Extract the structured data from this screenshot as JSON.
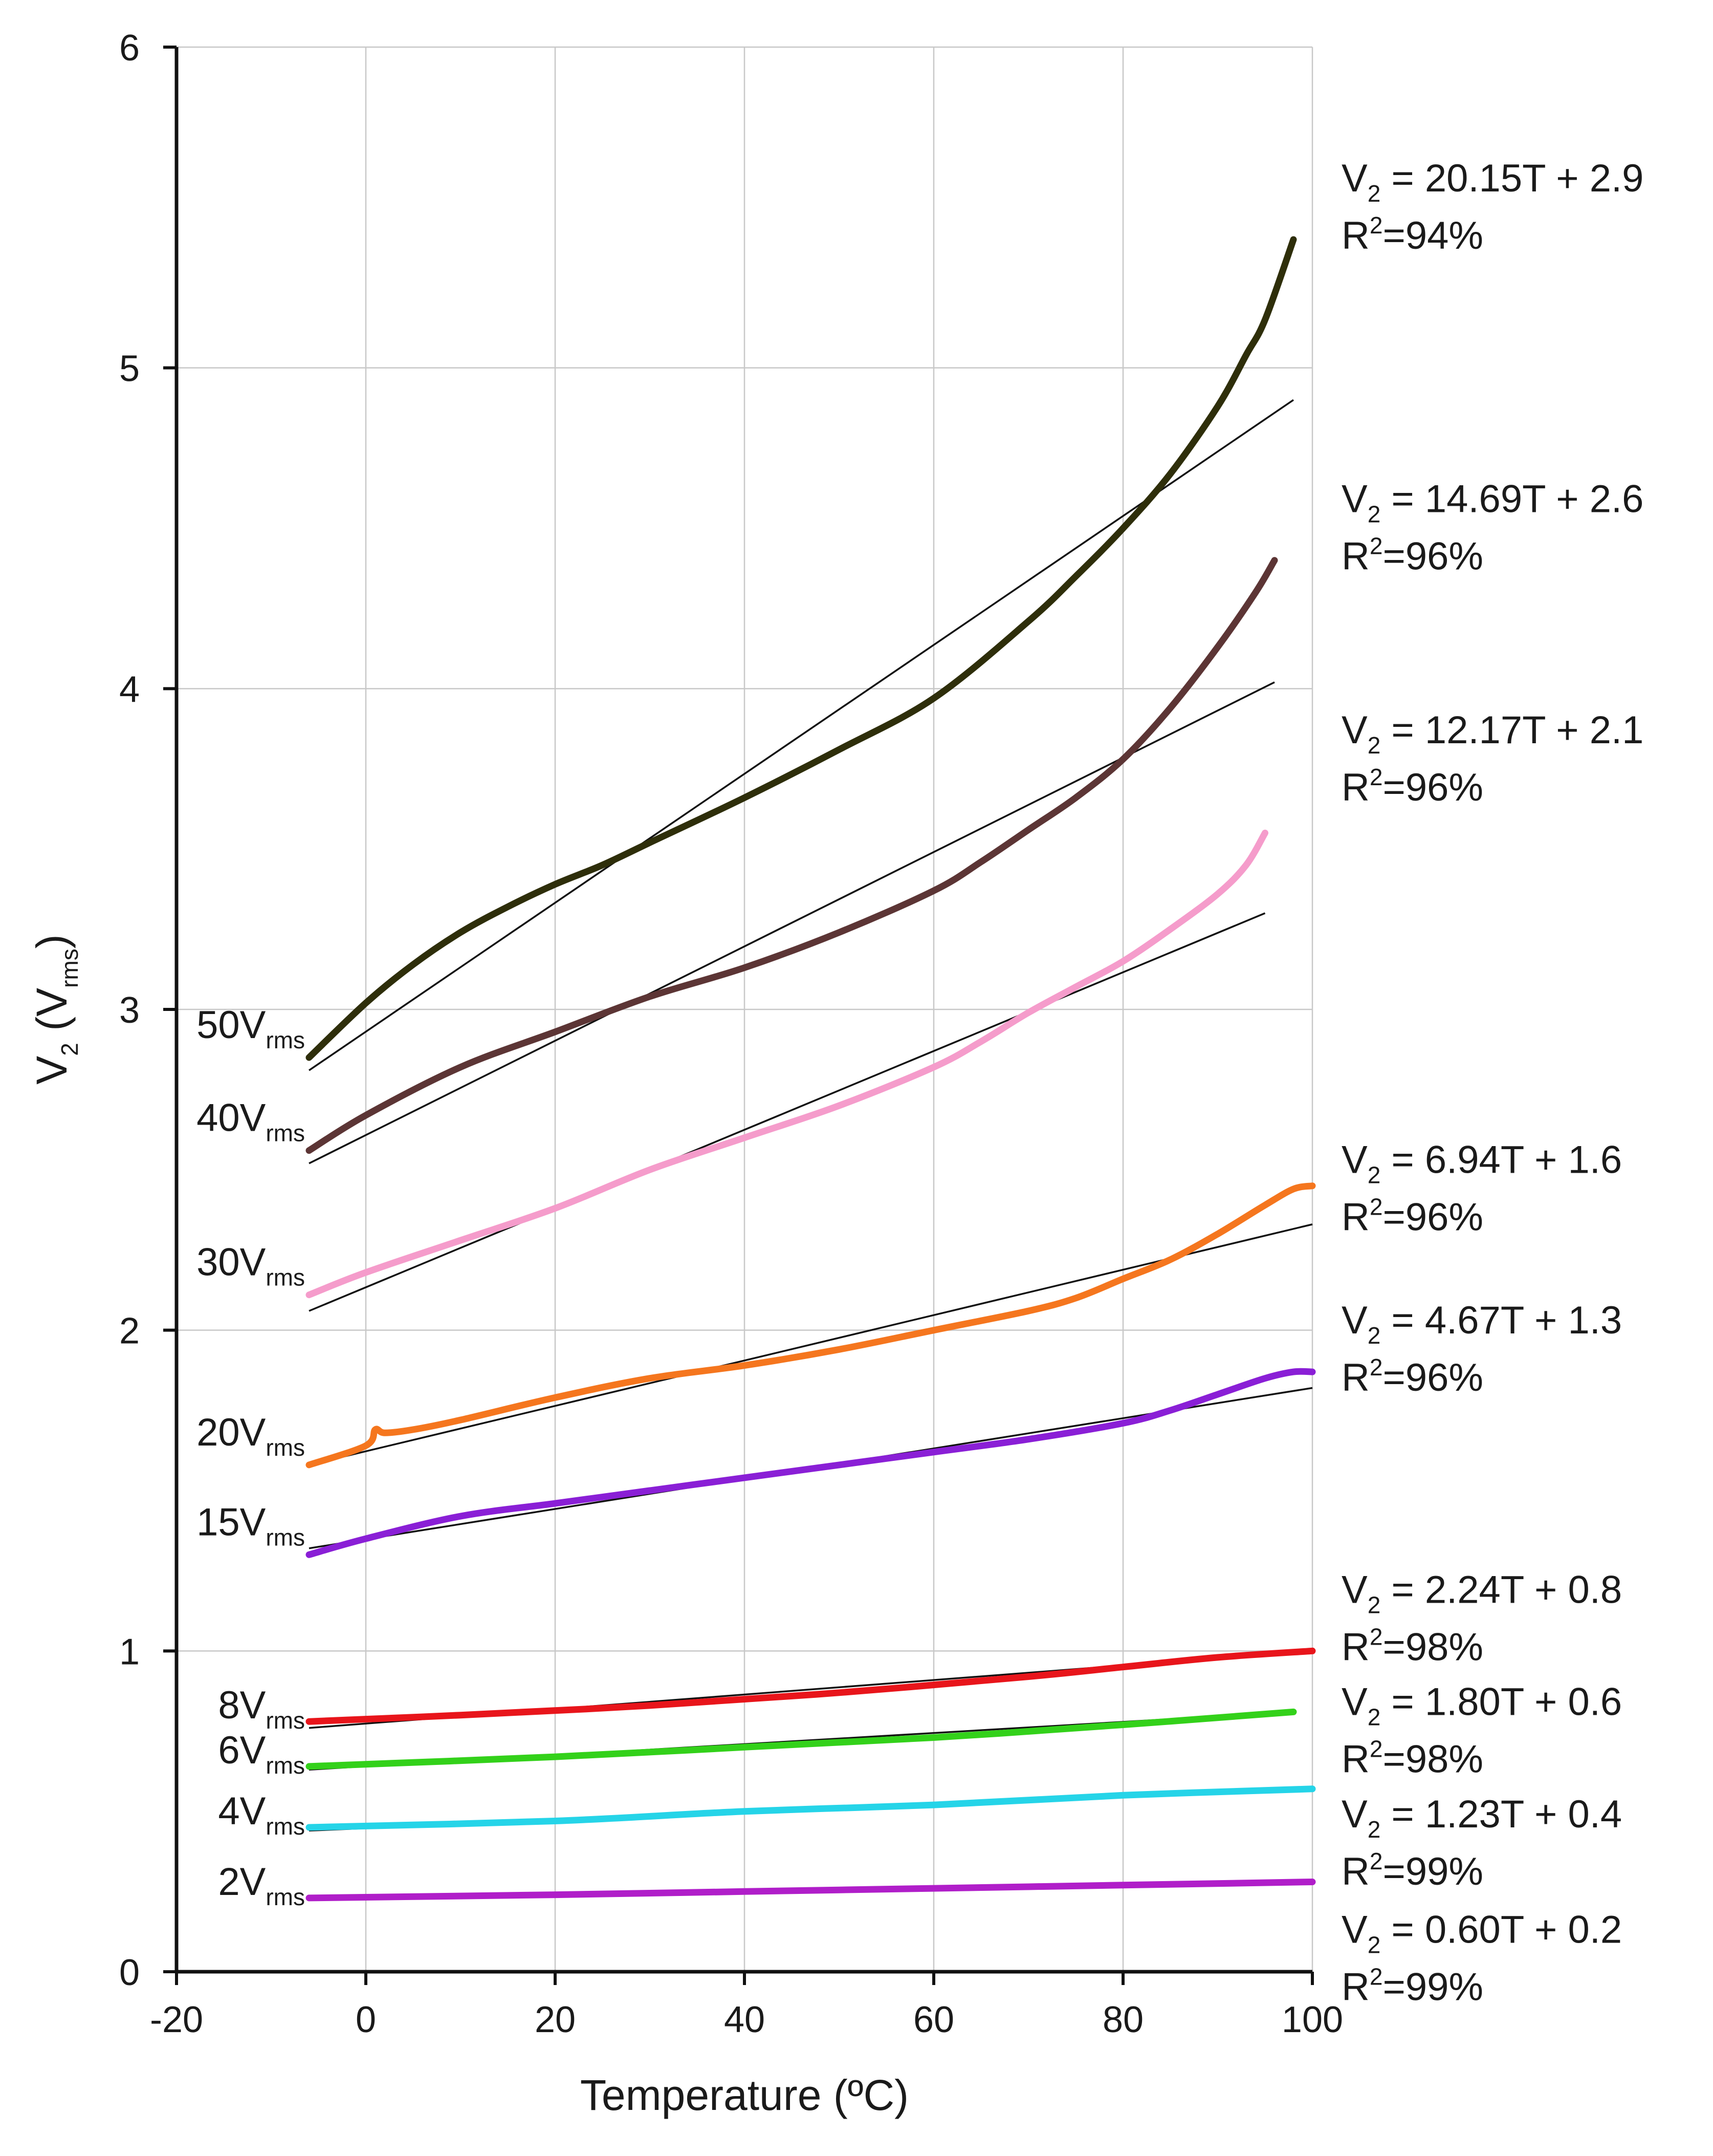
{
  "chart_data": {
    "type": "line",
    "title": "",
    "xlabel": "Temperature (ºC)",
    "ylabel": {
      "main": "V",
      "sub": "2",
      "paren_main": "V",
      "paren_sub": "rms"
    },
    "xlim": [
      -20,
      100
    ],
    "ylim": [
      0,
      6
    ],
    "xticks": [
      -20,
      0,
      20,
      40,
      60,
      80,
      100
    ],
    "yticks": [
      0,
      1,
      2,
      3,
      4,
      5,
      6
    ],
    "grid": true,
    "series": [
      {
        "name": "50Vrms",
        "label": {
          "main": "50V",
          "sub": "rms"
        },
        "color": "#2e2e0a",
        "x": [
          -6,
          0,
          5,
          10,
          15,
          20,
          25,
          30,
          40,
          50,
          60,
          70,
          75,
          80,
          85,
          90,
          93,
          95,
          98
        ],
        "y": [
          2.85,
          3.02,
          3.14,
          3.24,
          3.32,
          3.39,
          3.45,
          3.52,
          3.66,
          3.81,
          3.97,
          4.21,
          4.35,
          4.5,
          4.67,
          4.88,
          5.04,
          5.15,
          5.4
        ],
        "fit": {
          "x": [
            -6,
            98
          ],
          "y": [
            2.81,
            4.9
          ]
        },
        "equation": {
          "v": "V",
          "v_sub": "2",
          "rest": " = 20.15T + 2.9",
          "r_pre": "R",
          "r_sup": "2",
          "r_rest": "=94%"
        }
      },
      {
        "name": "40Vrms",
        "label": {
          "main": "40V",
          "sub": "rms"
        },
        "color": "#5c3535",
        "x": [
          -6,
          0,
          10,
          20,
          30,
          40,
          50,
          60,
          65,
          70,
          75,
          80,
          85,
          90,
          94,
          96
        ],
        "y": [
          2.56,
          2.67,
          2.82,
          2.93,
          3.04,
          3.13,
          3.24,
          3.37,
          3.46,
          3.56,
          3.66,
          3.78,
          3.94,
          4.13,
          4.3,
          4.4
        ],
        "fit": {
          "x": [
            -6,
            96
          ],
          "y": [
            2.52,
            4.02
          ]
        },
        "equation": {
          "v": "V",
          "v_sub": "2",
          "rest": " = 14.69T + 2.6",
          "r_pre": "R",
          "r_sup": "2",
          "r_rest": "=96%"
        }
      },
      {
        "name": "30Vrms",
        "label": {
          "main": "30V",
          "sub": "rms"
        },
        "color": "#f59ccb",
        "x": [
          -6,
          0,
          10,
          20,
          30,
          40,
          50,
          60,
          65,
          70,
          75,
          80,
          85,
          90,
          93,
          95
        ],
        "y": [
          2.11,
          2.18,
          2.28,
          2.38,
          2.5,
          2.6,
          2.7,
          2.82,
          2.9,
          2.99,
          3.07,
          3.15,
          3.25,
          3.36,
          3.45,
          3.55
        ],
        "fit": {
          "x": [
            -6,
            95
          ],
          "y": [
            2.06,
            3.3
          ]
        },
        "equation": {
          "v": "V",
          "v_sub": "2",
          "rest": " = 12.17T + 2.1",
          "r_pre": "R",
          "r_sup": "2",
          "r_rest": "=96%"
        }
      },
      {
        "name": "20Vrms",
        "label": {
          "main": "20V",
          "sub": "rms"
        },
        "color": "#f5761e",
        "x": [
          -6,
          0,
          1,
          2,
          5,
          10,
          20,
          30,
          40,
          50,
          60,
          70,
          75,
          80,
          85,
          90,
          95,
          98,
          100
        ],
        "y": [
          1.58,
          1.64,
          1.69,
          1.68,
          1.69,
          1.72,
          1.79,
          1.85,
          1.89,
          1.94,
          2.0,
          2.06,
          2.1,
          2.16,
          2.22,
          2.3,
          2.39,
          2.44,
          2.45
        ],
        "fit": {
          "x": [
            -6,
            100
          ],
          "y": [
            1.58,
            2.33
          ]
        },
        "equation": {
          "v": "V",
          "v_sub": "2",
          "rest": " = 6.94T + 1.6",
          "r_pre": "R",
          "r_sup": "2",
          "r_rest": "=96%"
        }
      },
      {
        "name": "15Vrms",
        "label": {
          "main": "15V",
          "sub": "rms"
        },
        "color": "#8a1fd6",
        "x": [
          -6,
          0,
          10,
          20,
          30,
          40,
          50,
          60,
          70,
          80,
          85,
          90,
          95,
          98,
          100
        ],
        "y": [
          1.3,
          1.35,
          1.42,
          1.46,
          1.5,
          1.54,
          1.58,
          1.62,
          1.66,
          1.71,
          1.75,
          1.8,
          1.85,
          1.87,
          1.87
        ],
        "fit": {
          "x": [
            -6,
            100
          ],
          "y": [
            1.32,
            1.82
          ]
        },
        "equation": {
          "v": "V",
          "v_sub": "2",
          "rest": " = 4.67T + 1.3",
          "r_pre": "R",
          "r_sup": "2",
          "r_rest": "=96%"
        }
      },
      {
        "name": "8Vrms",
        "label": {
          "main": "8V",
          "sub": "rms"
        },
        "color": "#e8151b",
        "x": [
          -6,
          10,
          30,
          50,
          70,
          80,
          90,
          100
        ],
        "y": [
          0.78,
          0.8,
          0.83,
          0.87,
          0.92,
          0.95,
          0.98,
          1.0
        ],
        "fit": {
          "x": [
            -6,
            100
          ],
          "y": [
            0.76,
            1.0
          ]
        },
        "equation": {
          "v": "V",
          "v_sub": "2",
          "rest": " = 2.24T + 0.8",
          "r_pre": "R",
          "r_sup": "2",
          "r_rest": "=98%"
        }
      },
      {
        "name": "6Vrms",
        "label": {
          "main": "6V",
          "sub": "rms"
        },
        "color": "#33d11a",
        "x": [
          -6,
          20,
          40,
          60,
          80,
          98
        ],
        "y": [
          0.64,
          0.67,
          0.7,
          0.73,
          0.77,
          0.81
        ],
        "fit": {
          "x": [
            -6,
            98
          ],
          "y": [
            0.63,
            0.81
          ]
        },
        "equation": {
          "v": "V",
          "v_sub": "2",
          "rest": " = 1.80T + 0.6",
          "r_pre": "R",
          "r_sup": "2",
          "r_rest": "=98%"
        }
      },
      {
        "name": "4Vrms",
        "label": {
          "main": "4V",
          "sub": "rms"
        },
        "color": "#25d4e8",
        "x": [
          -6,
          20,
          40,
          60,
          80,
          100
        ],
        "y": [
          0.45,
          0.47,
          0.5,
          0.52,
          0.55,
          0.57
        ],
        "fit": {
          "x": [
            -6,
            100
          ],
          "y": [
            0.44,
            0.57
          ]
        },
        "equation": {
          "v": "V",
          "v_sub": "2",
          "rest": " = 1.23T + 0.4",
          "r_pre": "R",
          "r_sup": "2",
          "r_rest": "=99%"
        }
      },
      {
        "name": "2Vrms",
        "label": {
          "main": "2V",
          "sub": "rms"
        },
        "color": "#b01ec9",
        "x": [
          -6,
          20,
          40,
          60,
          80,
          100
        ],
        "y": [
          0.23,
          0.24,
          0.25,
          0.26,
          0.27,
          0.28
        ],
        "fit": {
          "x": [
            -6,
            100
          ],
          "y": [
            0.23,
            0.28
          ]
        },
        "equation": {
          "v": "V",
          "v_sub": "2",
          "rest": " = 0.60T + 0.2",
          "r_pre": "R",
          "r_sup": "2",
          "r_rest": "=99%"
        }
      }
    ]
  }
}
